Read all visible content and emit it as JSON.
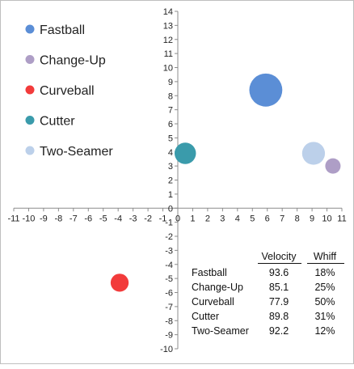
{
  "chart_data": {
    "type": "scatter",
    "title": "",
    "xlabel": "",
    "ylabel": "",
    "xlim": [
      -11,
      11
    ],
    "ylim": [
      -10,
      14
    ],
    "x_ticks": [
      -11,
      -10,
      -9,
      -8,
      -7,
      -6,
      -5,
      -4,
      -3,
      -2,
      -1,
      0,
      1,
      2,
      3,
      4,
      5,
      6,
      7,
      8,
      9,
      10,
      11
    ],
    "y_ticks": [
      14,
      13,
      12,
      11,
      10,
      9,
      8,
      7,
      6,
      5,
      4,
      3,
      2,
      1,
      0,
      -1,
      -2,
      -3,
      -4,
      -5,
      -6,
      -7,
      -8,
      -9,
      -10
    ],
    "grid": false,
    "legend_position": "top-left",
    "series": [
      {
        "name": "Fastball",
        "color": "#5b8ed6",
        "x": 5.9,
        "y": 8.4,
        "bubble_size": 4.9
      },
      {
        "name": "Change-Up",
        "color": "#ae9ec6",
        "x": 10.4,
        "y": 3.0,
        "bubble_size": 1.0
      },
      {
        "name": "Curveball",
        "color": "#f23b3b",
        "x": -3.9,
        "y": -5.3,
        "bubble_size": 1.4
      },
      {
        "name": "Cutter",
        "color": "#3a9bab",
        "x": 0.5,
        "y": 3.9,
        "bubble_size": 2.0
      },
      {
        "name": "Two-Seamer",
        "color": "#bcd0ea",
        "x": 9.1,
        "y": 3.9,
        "bubble_size": 2.3
      }
    ],
    "table": {
      "headers": [
        "Velocity",
        "Whiff"
      ],
      "rows": [
        {
          "pitch": "Fastball",
          "velocity": "93.6",
          "whiff": "18%"
        },
        {
          "pitch": "Change-Up",
          "velocity": "85.1",
          "whiff": "25%"
        },
        {
          "pitch": "Curveball",
          "velocity": "77.9",
          "whiff": "50%"
        },
        {
          "pitch": "Cutter",
          "velocity": "89.8",
          "whiff": "31%"
        },
        {
          "pitch": "Two-Seamer",
          "velocity": "92.2",
          "whiff": "12%"
        }
      ]
    }
  }
}
